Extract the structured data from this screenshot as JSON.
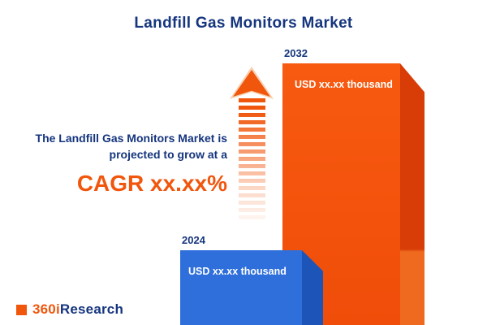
{
  "header": {
    "title": "Landfill Gas Monitors Market"
  },
  "annotation": {
    "line1": "The Landfill Gas Monitors Market is",
    "line2": "projected to grow at a",
    "cagr": "CAGR xx.xx%"
  },
  "chart_data": {
    "type": "bar",
    "title": "Landfill Gas Monitors Market",
    "categories": [
      "2024",
      "2032"
    ],
    "values": [
      null,
      null
    ],
    "values_masked": true,
    "value_labels": [
      "USD xx.xx thousand",
      "USD xx.xx thousand"
    ],
    "unit": "USD thousand",
    "bar_colors": [
      "#2f6fdb",
      "#f4520b"
    ],
    "bar_side_colors": [
      "#1d54b8",
      "#d83c07"
    ],
    "relative_heights": [
      0.29,
      1.0
    ],
    "annotation": "CAGR xx.xx%",
    "legend_position": "none",
    "grid": false
  },
  "logo": {
    "prefix": "360i",
    "suffix": "Research"
  },
  "colors": {
    "navy": "#15357e",
    "orange": "#f1560d",
    "bar_blue": "#2f6fdb",
    "bar_blue_side": "#1d54b8",
    "bar_orange": "#f4520b",
    "bar_orange_side": "#d83c07",
    "background": "#ffffff"
  }
}
